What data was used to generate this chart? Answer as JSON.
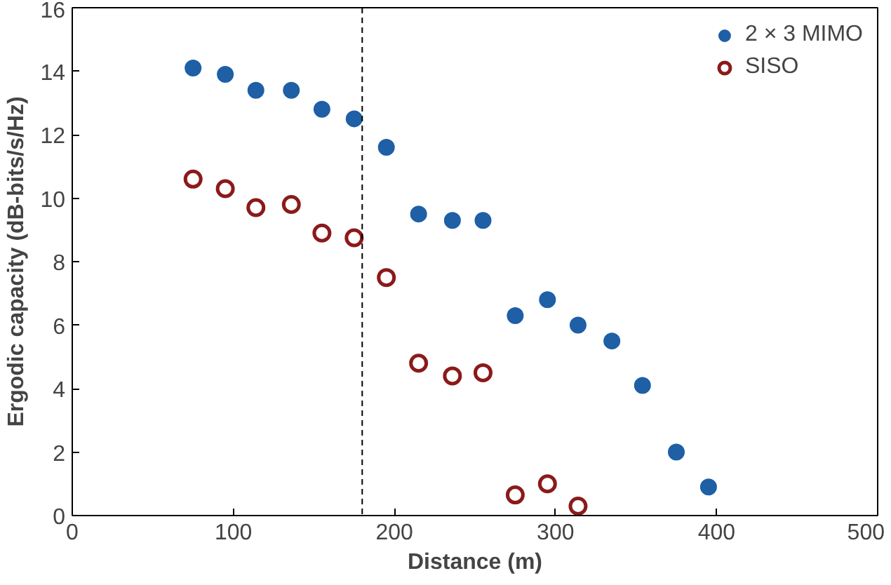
{
  "chart_data": {
    "type": "scatter",
    "xlabel": "Distance (m)",
    "ylabel": "Ergodic capacity (dB-bits/s/Hz)",
    "xlim": [
      0,
      500
    ],
    "xticks": [
      0,
      100,
      200,
      300,
      400,
      500
    ],
    "ylim": [
      0,
      16
    ],
    "yticks": [
      0,
      2,
      4,
      6,
      8,
      10,
      12,
      14,
      16
    ],
    "grid": false,
    "legend": "top right",
    "marker": "circle",
    "series": [
      {
        "name": "2 × 3 MIMO",
        "color": "#1f5fa6",
        "x": [
          75,
          95,
          114,
          136,
          155,
          175,
          195,
          215,
          236,
          255,
          275,
          295,
          314,
          335,
          354,
          375,
          395
        ],
        "values": [
          14.1,
          13.9,
          13.4,
          13.4,
          12.8,
          12.5,
          11.6,
          9.5,
          9.3,
          9.3,
          6.3,
          6.8,
          6.0,
          5.5,
          4.1,
          2.0,
          0.9
        ]
      },
      {
        "name": "SISO",
        "color": "#8b1a1a",
        "x": [
          75,
          95,
          114,
          136,
          155,
          175,
          195,
          215,
          236,
          255,
          275,
          295,
          314
        ],
        "values": [
          10.6,
          10.3,
          9.7,
          9.8,
          8.9,
          8.75,
          7.5,
          4.8,
          4.4,
          4.5,
          0.65,
          1.0,
          0.3
        ]
      }
    ],
    "ref_lines": [
      {
        "axis": "x",
        "value": 180,
        "line_style": "dashed",
        "color": "#000000"
      }
    ]
  }
}
